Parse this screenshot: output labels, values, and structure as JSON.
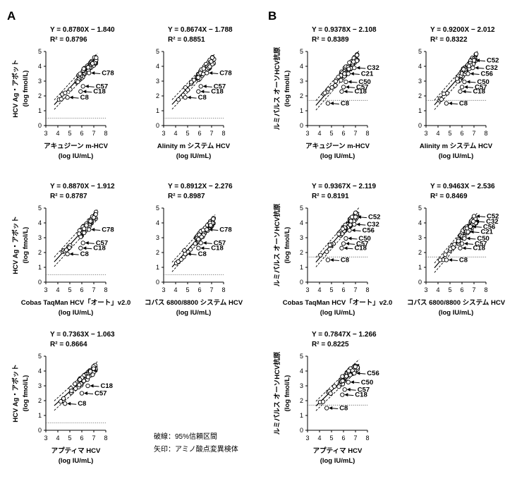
{
  "figure": {
    "panel_labels": [
      "A",
      "B"
    ],
    "notes": [
      "破線：95%信頼区間",
      "矢印：アミノ酸点変異検体"
    ]
  },
  "colors": {
    "ink": "#000000",
    "marker_fill": "#ffffff",
    "lod_line": "#555555"
  },
  "chart_data": [
    {
      "id": "A1",
      "type": "scatter",
      "equation": "Y = 0.8780X − 1.840",
      "r2": "R² = 0.8796",
      "slope": 0.878,
      "intercept": -1.84,
      "xlabel": "アキュジーン m-HCV",
      "xunit": "(log IU/mL)",
      "ylabel": "HCV Ag・アボット",
      "yunit": "(log fmol/L)",
      "xlim": [
        3,
        8
      ],
      "ylim": [
        0,
        5
      ],
      "xticks": [
        "3",
        "4",
        "5",
        "6",
        "7",
        "8"
      ],
      "yticks": [
        "0",
        "1",
        "2",
        "3",
        "4",
        "5"
      ],
      "lod": 0.5,
      "annotations": [
        {
          "label": "C78",
          "x": 6.6,
          "y": 3.55
        },
        {
          "label": "C57",
          "x": 6.1,
          "y": 2.65
        },
        {
          "label": "C18",
          "x": 5.9,
          "y": 2.3
        },
        {
          "label": "C8",
          "x": 4.8,
          "y": 1.9
        }
      ]
    },
    {
      "id": "A2",
      "type": "scatter",
      "equation": "Y = 0.8674X − 1.788",
      "r2": "R² = 0.8851",
      "slope": 0.8674,
      "intercept": -1.788,
      "xlabel": "Alinity m システム HCV",
      "xunit": "(log IU/mL)",
      "ylabel": "",
      "yunit": "",
      "xlim": [
        3,
        8
      ],
      "ylim": [
        0,
        5
      ],
      "xticks": [
        "3",
        "4",
        "5",
        "6",
        "7",
        "8"
      ],
      "yticks": [
        "0",
        "1",
        "2",
        "3",
        "4",
        "5"
      ],
      "lod": 0.5,
      "annotations": [
        {
          "label": "C78",
          "x": 6.6,
          "y": 3.55
        },
        {
          "label": "C57",
          "x": 6.1,
          "y": 2.65
        },
        {
          "label": "C18",
          "x": 5.9,
          "y": 2.3
        },
        {
          "label": "C8",
          "x": 4.8,
          "y": 1.9
        }
      ]
    },
    {
      "id": "B1",
      "type": "scatter",
      "equation": "Y = 0.9378X − 2.108",
      "r2": "R² = 0.8389",
      "slope": 0.9378,
      "intercept": -2.108,
      "xlabel": "アキュジーン m-HCV",
      "xunit": "(log IU/mL)",
      "ylabel": "ルミパルス オーソHCV抗原",
      "yunit": "(log fmol/L)",
      "xlim": [
        3,
        8
      ],
      "ylim": [
        0,
        5
      ],
      "xticks": [
        "3",
        "4",
        "5",
        "6",
        "7",
        "8"
      ],
      "yticks": [
        "0",
        "1",
        "2",
        "3",
        "4",
        "5"
      ],
      "lod": 1.7,
      "annotations": [
        {
          "label": "C32",
          "x": 6.9,
          "y": 3.9
        },
        {
          "label": "C21",
          "x": 6.4,
          "y": 3.5
        },
        {
          "label": "C50",
          "x": 6.2,
          "y": 2.95
        },
        {
          "label": "C57",
          "x": 6.0,
          "y": 2.6
        },
        {
          "label": "C18",
          "x": 5.85,
          "y": 2.3
        },
        {
          "label": "C8",
          "x": 4.7,
          "y": 1.5
        }
      ]
    },
    {
      "id": "B2",
      "type": "scatter",
      "equation": "Y = 0.9200X − 2.012",
      "r2": "R² = 0.8322",
      "slope": 0.92,
      "intercept": -2.012,
      "xlabel": "Alinity m システム HCV",
      "xunit": "(log IU/mL)",
      "ylabel": "",
      "yunit": "",
      "xlim": [
        3,
        8
      ],
      "ylim": [
        0,
        5
      ],
      "xticks": [
        "3",
        "4",
        "5",
        "6",
        "7",
        "8"
      ],
      "yticks": [
        "0",
        "1",
        "2",
        "3",
        "4",
        "5"
      ],
      "lod": 1.7,
      "annotations": [
        {
          "label": "C52",
          "x": 7.0,
          "y": 4.4
        },
        {
          "label": "C32",
          "x": 6.9,
          "y": 3.9
        },
        {
          "label": "C56",
          "x": 6.5,
          "y": 3.5
        },
        {
          "label": "C50",
          "x": 6.2,
          "y": 2.95
        },
        {
          "label": "C57",
          "x": 6.0,
          "y": 2.6
        },
        {
          "label": "C18",
          "x": 5.85,
          "y": 2.3
        },
        {
          "label": "C8",
          "x": 4.7,
          "y": 1.5
        }
      ]
    },
    {
      "id": "A3",
      "type": "scatter",
      "equation": "Y = 0.8870X − 1.912",
      "r2": "R² = 0.8787",
      "slope": 0.887,
      "intercept": -1.912,
      "xlabel": "Cobas TaqMan HCV「オート」v2.0",
      "xunit": "(log IU/mL)",
      "ylabel": "HCV Ag・アボット",
      "yunit": "(log fmol/L)",
      "xlim": [
        3,
        8
      ],
      "ylim": [
        0,
        5
      ],
      "xticks": [
        "3",
        "4",
        "5",
        "6",
        "7",
        "8"
      ],
      "yticks": [
        "0",
        "1",
        "2",
        "3",
        "4",
        "5"
      ],
      "lod": 0.5,
      "annotations": [
        {
          "label": "C78",
          "x": 6.6,
          "y": 3.55
        },
        {
          "label": "C57",
          "x": 6.1,
          "y": 2.65
        },
        {
          "label": "C18",
          "x": 5.9,
          "y": 2.3
        },
        {
          "label": "C8",
          "x": 4.8,
          "y": 1.9
        }
      ]
    },
    {
      "id": "A4",
      "type": "scatter",
      "equation": "Y = 0.8912X − 2.276",
      "r2": "R² = 0.8987",
      "slope": 0.8912,
      "intercept": -2.276,
      "xlabel": "コバス 6800/8800 システム HCV",
      "xunit": "(log IU/mL)",
      "ylabel": "",
      "yunit": "",
      "xlim": [
        3,
        8
      ],
      "ylim": [
        0,
        5
      ],
      "xticks": [
        "3",
        "4",
        "5",
        "6",
        "7",
        "8"
      ],
      "yticks": [
        "0",
        "1",
        "2",
        "3",
        "4",
        "5"
      ],
      "lod": 0.5,
      "annotations": [
        {
          "label": "C78",
          "x": 6.6,
          "y": 3.55
        },
        {
          "label": "C57",
          "x": 6.1,
          "y": 2.65
        },
        {
          "label": "C18",
          "x": 5.9,
          "y": 2.3
        },
        {
          "label": "C8",
          "x": 4.8,
          "y": 1.9
        }
      ]
    },
    {
      "id": "B3",
      "type": "scatter",
      "equation": "Y = 0.9367X − 2.119",
      "r2": "R² = 0.8191",
      "slope": 0.9367,
      "intercept": -2.119,
      "xlabel": "Cobas TaqMan HCV「オート」v2.0",
      "xunit": "(log IU/mL)",
      "ylabel": "ルミパルス オーソHCV抗原",
      "yunit": "(log fmol/L)",
      "xlim": [
        3,
        8
      ],
      "ylim": [
        0,
        5
      ],
      "xticks": [
        "3",
        "4",
        "5",
        "6",
        "7",
        "8"
      ],
      "yticks": [
        "0",
        "1",
        "2",
        "3",
        "4",
        "5"
      ],
      "lod": 1.7,
      "annotations": [
        {
          "label": "C52",
          "x": 7.0,
          "y": 4.4
        },
        {
          "label": "C32",
          "x": 6.9,
          "y": 3.9
        },
        {
          "label": "C56",
          "x": 6.5,
          "y": 3.5
        },
        {
          "label": "C50",
          "x": 6.2,
          "y": 2.95
        },
        {
          "label": "C57",
          "x": 6.0,
          "y": 2.6
        },
        {
          "label": "C18",
          "x": 5.85,
          "y": 2.3
        },
        {
          "label": "C8",
          "x": 4.7,
          "y": 1.5
        }
      ]
    },
    {
      "id": "B4",
      "type": "scatter",
      "equation": "Y = 0.9463X − 2.536",
      "r2": "R² = 0.8469",
      "slope": 0.9463,
      "intercept": -2.536,
      "xlabel": "コバス 6800/8800 システム HCV",
      "xunit": "(log IU/mL)",
      "ylabel": "",
      "yunit": "",
      "xlim": [
        3,
        8
      ],
      "ylim": [
        0,
        5
      ],
      "xticks": [
        "3",
        "4",
        "5",
        "6",
        "7",
        "8"
      ],
      "yticks": [
        "0",
        "1",
        "2",
        "3",
        "4",
        "5"
      ],
      "lod": 1.7,
      "annotations": [
        {
          "label": "C52",
          "x": 7.0,
          "y": 4.45
        },
        {
          "label": "C32",
          "x": 6.95,
          "y": 4.1
        },
        {
          "label": "C56",
          "x": 6.7,
          "y": 3.75
        },
        {
          "label": "C21",
          "x": 6.5,
          "y": 3.4
        },
        {
          "label": "C50",
          "x": 6.2,
          "y": 2.95
        },
        {
          "label": "C57",
          "x": 6.0,
          "y": 2.6
        },
        {
          "label": "C18",
          "x": 5.85,
          "y": 2.3
        },
        {
          "label": "C8",
          "x": 4.7,
          "y": 1.5
        }
      ]
    },
    {
      "id": "A5",
      "type": "scatter",
      "equation": "Y = 0.7363X − 1.063",
      "r2": "R² = 0.8664",
      "slope": 0.7363,
      "intercept": -1.063,
      "xlabel": "アプティマ HCV",
      "xunit": "(log IU/mL)",
      "ylabel": "HCV Ag・アボット",
      "yunit": "(log fmol/L)",
      "xlim": [
        3,
        8
      ],
      "ylim": [
        0,
        5
      ],
      "xticks": [
        "3",
        "4",
        "5",
        "6",
        "7",
        "8"
      ],
      "yticks": [
        "0",
        "1",
        "2",
        "3",
        "4",
        "5"
      ],
      "lod": 0.5,
      "annotations": [
        {
          "label": "C18",
          "x": 6.5,
          "y": 3.0
        },
        {
          "label": "C57",
          "x": 6.0,
          "y": 2.5
        },
        {
          "label": "C8",
          "x": 4.6,
          "y": 1.8
        }
      ]
    },
    {
      "id": "B5",
      "type": "scatter",
      "equation": "Y = 0.7847X − 1.266",
      "r2": "R² = 0.8225",
      "slope": 0.7847,
      "intercept": -1.266,
      "xlabel": "アプティマ HCV",
      "xunit": "(log IU/mL)",
      "ylabel": "ルミパルス オーソHCV抗原",
      "yunit": "(log fmol/L)",
      "xlim": [
        3,
        8
      ],
      "ylim": [
        0,
        5
      ],
      "xticks": [
        "3",
        "4",
        "5",
        "6",
        "7",
        "8"
      ],
      "yticks": [
        "0",
        "1",
        "2",
        "3",
        "4",
        "5"
      ],
      "lod": 1.7,
      "annotations": [
        {
          "label": "C56",
          "x": 6.9,
          "y": 3.85
        },
        {
          "label": "C50",
          "x": 6.4,
          "y": 3.25
        },
        {
          "label": "C57",
          "x": 6.1,
          "y": 2.75
        },
        {
          "label": "C18",
          "x": 5.9,
          "y": 2.4
        },
        {
          "label": "C8",
          "x": 4.6,
          "y": 1.5
        }
      ]
    }
  ]
}
